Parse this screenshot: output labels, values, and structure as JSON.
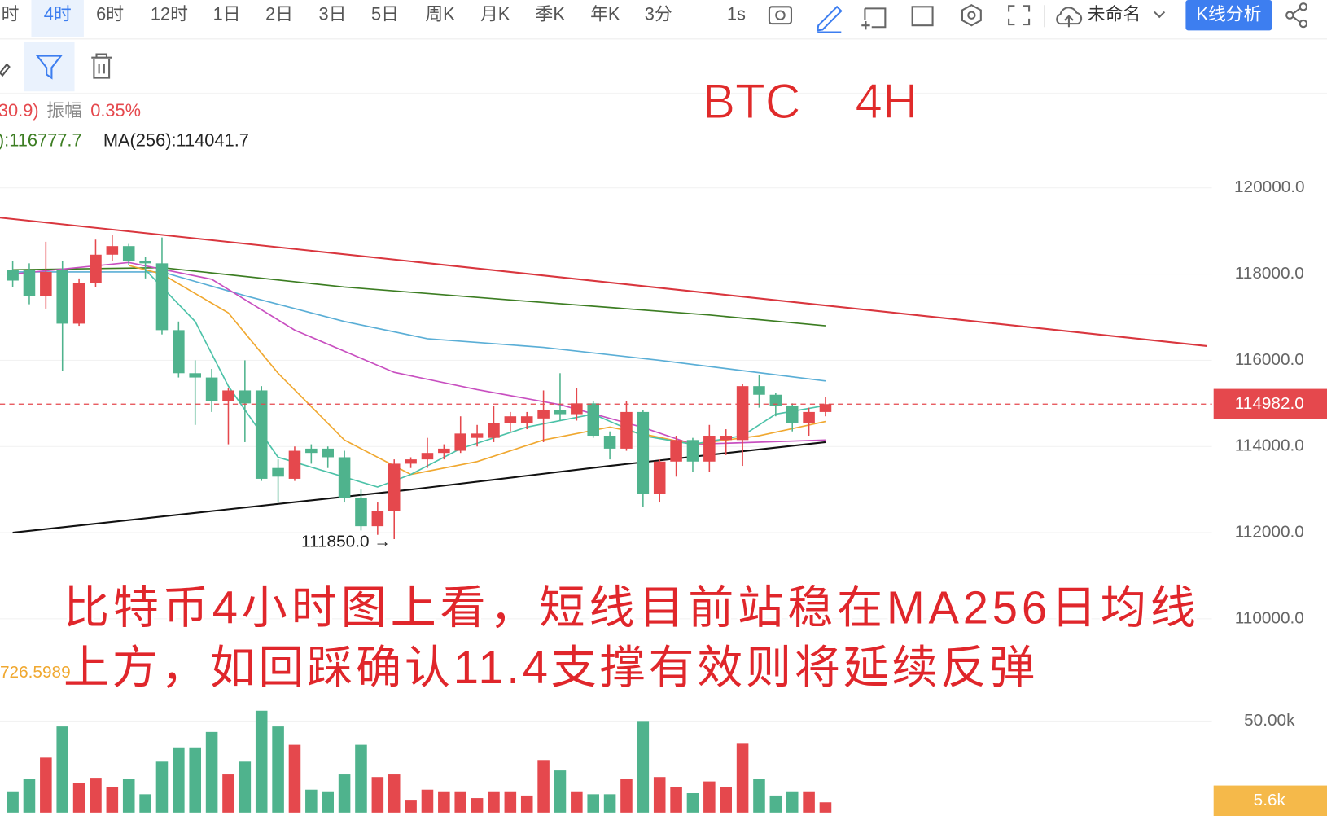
{
  "toolbar": {
    "intervals": [
      "时",
      "4时",
      "6时",
      "12时",
      "1日",
      "2日",
      "3日",
      "5日",
      "周K",
      "月K",
      "季K",
      "年K",
      "3分"
    ],
    "speed": "1s",
    "layout_name": "未命名",
    "analysis_button": "K线分析"
  },
  "info": {
    "change": "30.9)",
    "amplitude_label": "振幅",
    "amplitude": "0.35%",
    "ma_partial": "):116777.7",
    "ma256": "MA(256):114041.7"
  },
  "chart_data": {
    "type": "candlestick",
    "title": "BTC    4H",
    "annotation": [
      "比特币4小时图上看，短线目前站稳在MA256日均线",
      "上方，如回踩确认11.4支撑有效则将延续反弹"
    ],
    "open": [
      118100,
      118100,
      117500,
      118100,
      116850,
      117800,
      118450,
      118650,
      118300,
      118250,
      116700,
      115700,
      115600,
      115050,
      115300,
      115300,
      113500,
      113250,
      113950,
      113950,
      113750,
      112800,
      112150,
      112500,
      113600,
      113700,
      113850,
      113900,
      114200,
      114200,
      114550,
      114550,
      114650,
      114850,
      114750,
      115000,
      114250,
      113950,
      114800,
      112900,
      113650,
      114150,
      113650,
      114150,
      114150,
      115400,
      115200,
      114950,
      114550,
      114800
    ],
    "close": [
      117850,
      117500,
      118050,
      116850,
      117800,
      118450,
      118650,
      118300,
      118250,
      116700,
      115700,
      115600,
      115050,
      115300,
      115000,
      113250,
      113300,
      113900,
      113850,
      113750,
      112800,
      112150,
      112500,
      113600,
      113700,
      113850,
      113950,
      114300,
      114300,
      114550,
      114700,
      114700,
      114850,
      114750,
      115000,
      114250,
      113950,
      114800,
      112900,
      113650,
      114150,
      113650,
      114250,
      114250,
      115400,
      115200,
      114950,
      114550,
      114800,
      114982
    ],
    "high": [
      118300,
      118250,
      118750,
      118300,
      117900,
      118800,
      118900,
      118700,
      118400,
      118850,
      116900,
      116000,
      115800,
      115350,
      116000,
      115400,
      113700,
      114000,
      114050,
      114000,
      113900,
      113000,
      112700,
      113700,
      113750,
      114200,
      114050,
      114700,
      114500,
      114950,
      114800,
      114800,
      115300,
      115700,
      115350,
      115050,
      114350,
      115050,
      114850,
      113700,
      114250,
      114200,
      114500,
      114400,
      115450,
      115650,
      115250,
      115000,
      114900,
      115150
    ],
    "low": [
      117700,
      117300,
      117200,
      115750,
      116800,
      117700,
      118300,
      118200,
      117900,
      116600,
      115600,
      114500,
      114800,
      114050,
      114100,
      113200,
      112700,
      113200,
      113600,
      113500,
      112700,
      112050,
      111950,
      111850,
      113500,
      113500,
      113700,
      113850,
      114000,
      114100,
      114350,
      114400,
      114100,
      114600,
      114600,
      114200,
      113700,
      113900,
      112600,
      112700,
      113300,
      113400,
      113400,
      113800,
      113550,
      114900,
      114700,
      114350,
      114250,
      114700
    ],
    "up_color": "#e5484d",
    "down_color": "#4fb38d",
    "ylim": [
      108450,
      122200
    ],
    "yticks": [
      {
        "value": 110000,
        "label": "110000.0"
      },
      {
        "value": 112000,
        "label": "112000.0"
      },
      {
        "value": 114000,
        "label": "114000.0"
      },
      {
        "value": 116000,
        "label": "116000.0"
      },
      {
        "value": 118000,
        "label": "118000.0"
      },
      {
        "value": 120000,
        "label": "120000.0"
      }
    ],
    "grid": true,
    "low_label": "111850.0 →",
    "last_price_label": "114982.0",
    "lines": [
      {
        "color": "#d9363e",
        "x": [
          -1,
          72
        ],
        "values": [
          119320,
          116330
        ]
      },
      {
        "color": "#111111",
        "x": [
          0,
          12,
          24,
          36,
          49
        ],
        "values": [
          112000,
          112500,
          113000,
          113550,
          114100
        ]
      },
      {
        "color": "#3c7d22",
        "x": [
          0,
          9,
          20,
          30,
          42,
          49
        ],
        "values": [
          118100,
          118150,
          117700,
          117400,
          117050,
          116800
        ]
      },
      {
        "color": "#5aaed6",
        "x": [
          0,
          9,
          14,
          20,
          25,
          32,
          39,
          49
        ],
        "values": [
          118050,
          118050,
          117500,
          116900,
          116500,
          116300,
          116000,
          115520
        ]
      },
      {
        "color": "#c84fc0",
        "x": [
          0,
          7,
          12,
          17,
          23,
          28,
          33,
          38,
          41,
          49
        ],
        "values": [
          118000,
          118270,
          117880,
          116700,
          115720,
          115320,
          114970,
          114440,
          114050,
          114150
        ]
      },
      {
        "color": "#f0a830",
        "x": [
          7,
          9,
          13,
          16,
          20,
          24,
          28,
          32,
          36,
          41,
          45,
          49
        ],
        "values": [
          118200,
          118000,
          117100,
          115700,
          114150,
          113350,
          113650,
          114150,
          114450,
          114050,
          114250,
          114580
        ]
      },
      {
        "color": "#4cc2a8",
        "x": [
          8,
          11,
          13,
          16,
          22,
          24,
          27,
          31,
          35,
          38,
          41,
          44,
          46,
          49
        ],
        "values": [
          118100,
          116900,
          115400,
          113750,
          113060,
          113350,
          113950,
          114450,
          114750,
          114250,
          114050,
          114250,
          114750,
          114950
        ]
      }
    ],
    "volume": {
      "values": [
        11600,
        18500,
        30000,
        47000,
        16000,
        19000,
        14000,
        18500,
        10000,
        27800,
        35600,
        35600,
        44000,
        20800,
        27800,
        55600,
        47000,
        37000,
        12500,
        11600,
        20800,
        37000,
        19400,
        20800,
        7000,
        12500,
        11600,
        11600,
        7900,
        11600,
        11600,
        9300,
        28700,
        23000,
        11600,
        10000,
        10000,
        18500,
        50000,
        19400,
        13900,
        10600,
        17000,
        13900,
        38000,
        18500,
        9300,
        11600,
        11600,
        5600
      ],
      "ylim": [
        0,
        67000
      ],
      "yticks": [
        {
          "value": 50000,
          "label": "50.00k"
        }
      ],
      "last_label": "5.6k",
      "indicator_label": "726.5989"
    }
  }
}
